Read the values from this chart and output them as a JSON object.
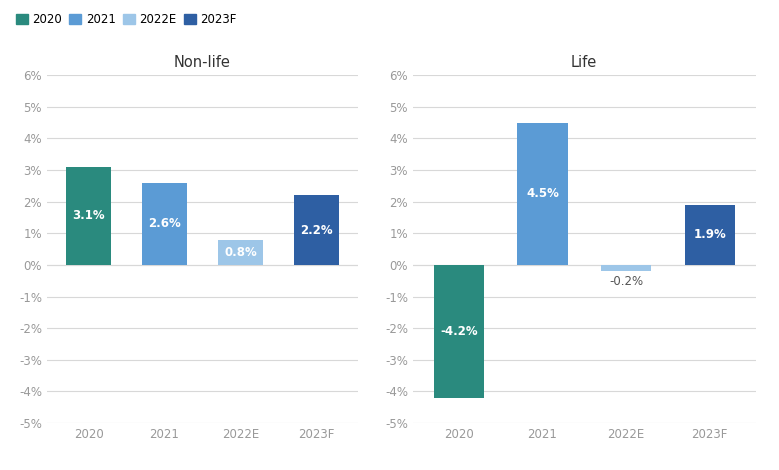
{
  "nonlife": {
    "categories": [
      "2020",
      "2021",
      "2022E",
      "2023F"
    ],
    "values": [
      3.1,
      2.6,
      0.8,
      2.2
    ],
    "colors": [
      "#2a8a7e",
      "#5b9bd5",
      "#9dc6e8",
      "#2e5fa3"
    ],
    "title": "Non-life"
  },
  "life": {
    "categories": [
      "2020",
      "2021",
      "2022E",
      "2023F"
    ],
    "values": [
      -4.2,
      4.5,
      -0.2,
      1.9
    ],
    "colors": [
      "#2a8a7e",
      "#5b9bd5",
      "#9dc6e8",
      "#2e5fa3"
    ],
    "title": "Life"
  },
  "legend": {
    "labels": [
      "2020",
      "2021",
      "2022E",
      "2023F"
    ],
    "colors": [
      "#2a8a7e",
      "#5b9bd5",
      "#9dc6e8",
      "#2e5fa3"
    ]
  },
  "ylim": [
    -5,
    6
  ],
  "yticks": [
    -5,
    -4,
    -3,
    -2,
    -1,
    0,
    1,
    2,
    3,
    4,
    5,
    6
  ],
  "ytick_labels": [
    "-5%",
    "-4%",
    "-3%",
    "-2%",
    "-1%",
    "0%",
    "1%",
    "2%",
    "3%",
    "4%",
    "5%",
    "6%"
  ],
  "background_color": "#ffffff",
  "grid_color": "#d8d8d8",
  "label_fontsize": 8.5,
  "title_fontsize": 10.5,
  "bar_width": 0.6,
  "value_label_color_white": "#ffffff",
  "value_label_color_dark": "#555555",
  "value_label_fontsize": 8.5
}
